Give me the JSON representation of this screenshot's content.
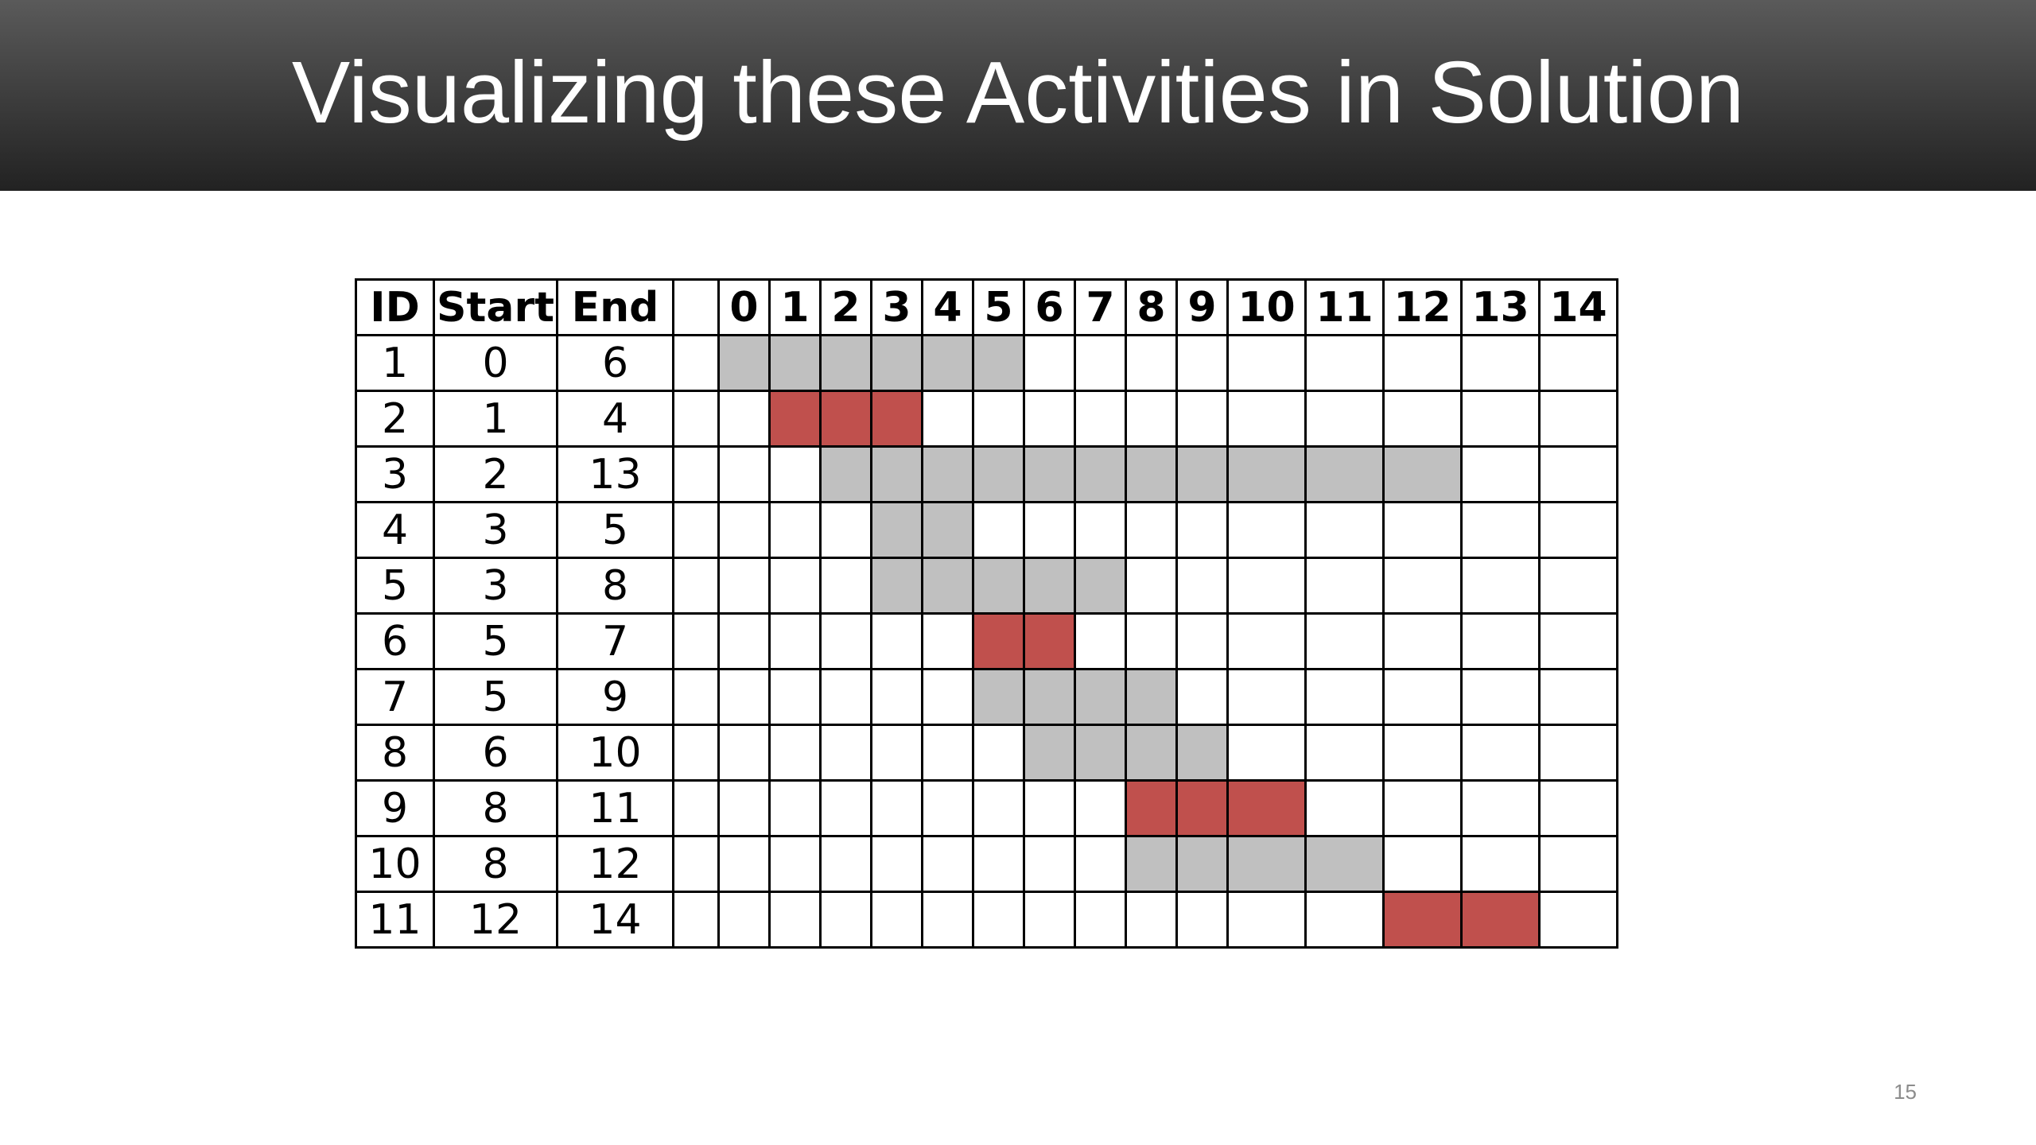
{
  "slide": {
    "title": "Visualizing these Activities in Solution",
    "page_number": "15"
  },
  "table": {
    "headers": {
      "id": "ID",
      "start": "Start",
      "end": "End",
      "time_slots": [
        "0",
        "1",
        "2",
        "3",
        "4",
        "5",
        "6",
        "7",
        "8",
        "9",
        "10",
        "11",
        "12",
        "13",
        "14"
      ]
    },
    "colors": {
      "not_selected": "#c0c0c0",
      "selected": "#c0504d"
    },
    "activities": [
      {
        "id": "1",
        "start": "0",
        "end": "6",
        "s": 0,
        "e": 6,
        "selected": false
      },
      {
        "id": "2",
        "start": "1",
        "end": "4",
        "s": 1,
        "e": 4,
        "selected": true
      },
      {
        "id": "3",
        "start": "2",
        "end": "13",
        "s": 2,
        "e": 13,
        "selected": false
      },
      {
        "id": "4",
        "start": "3",
        "end": "5",
        "s": 3,
        "e": 5,
        "selected": false
      },
      {
        "id": "5",
        "start": "3",
        "end": "8",
        "s": 3,
        "e": 8,
        "selected": false
      },
      {
        "id": "6",
        "start": "5",
        "end": "7",
        "s": 5,
        "e": 7,
        "selected": true
      },
      {
        "id": "7",
        "start": "5",
        "end": "9",
        "s": 5,
        "e": 9,
        "selected": false
      },
      {
        "id": "8",
        "start": "6",
        "end": "10",
        "s": 6,
        "e": 10,
        "selected": false
      },
      {
        "id": "9",
        "start": "8",
        "end": "11",
        "s": 8,
        "e": 11,
        "selected": true
      },
      {
        "id": "10",
        "start": "8",
        "end": "12",
        "s": 8,
        "e": 12,
        "selected": false
      },
      {
        "id": "11",
        "start": "12",
        "end": "14",
        "s": 12,
        "e": 14,
        "selected": true
      }
    ]
  }
}
